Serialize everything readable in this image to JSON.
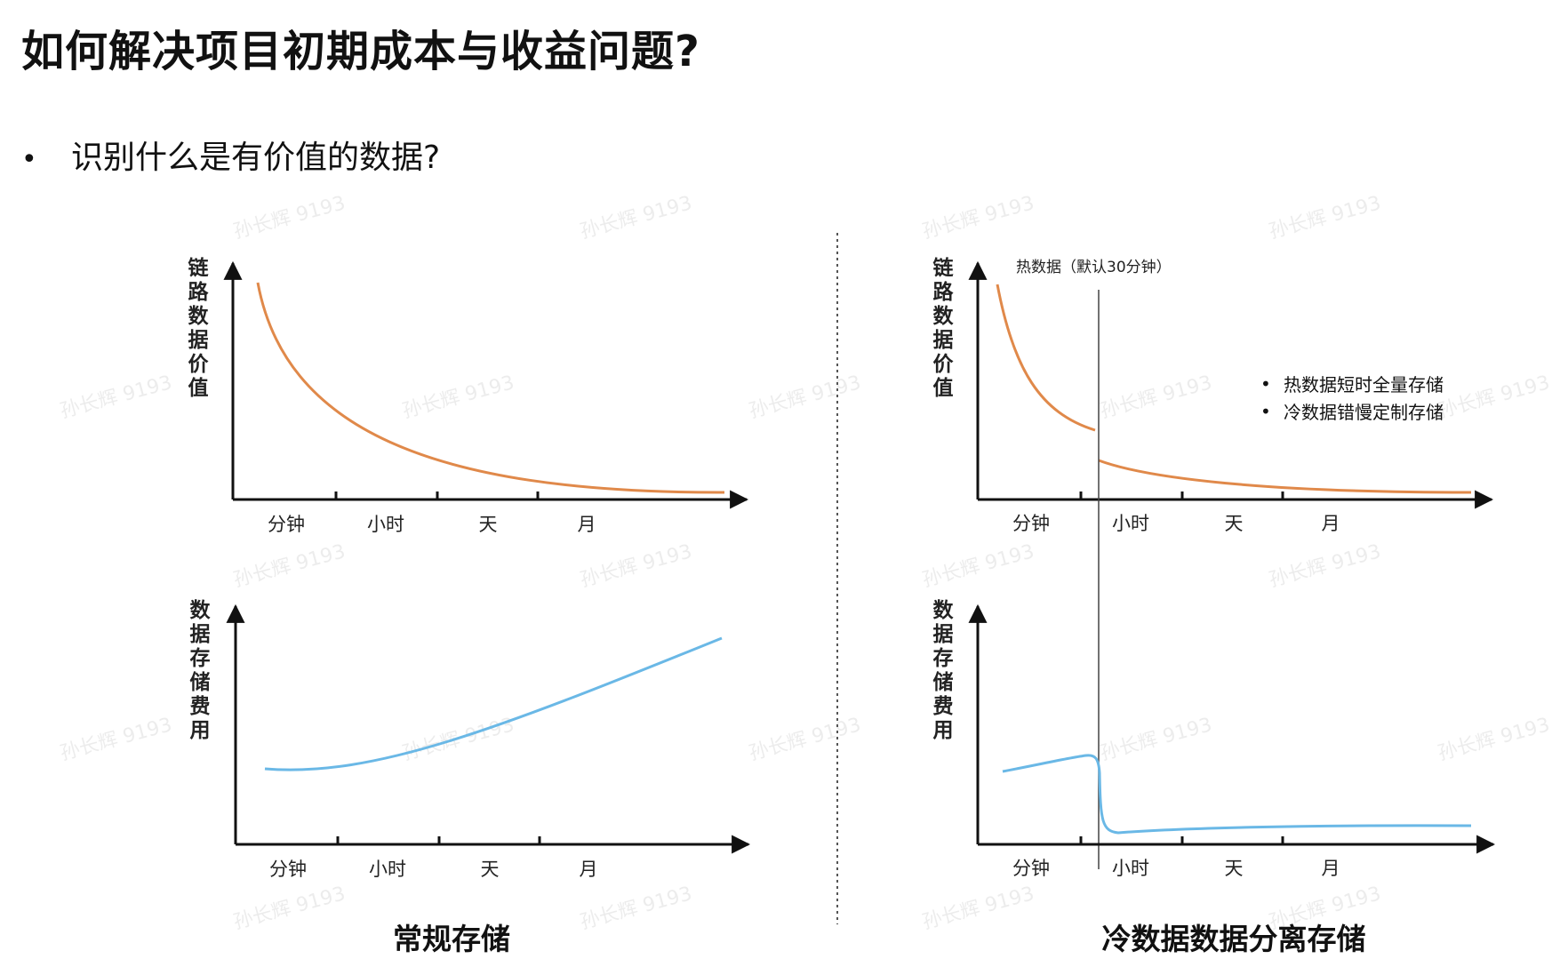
{
  "title": "如何解决项目初期成本与收益问题?",
  "bullet": {
    "dot": "•",
    "text": "识别什么是有价值的数据?"
  },
  "colors": {
    "value_curve": "#e0894a",
    "cost_curve": "#6ab8e6",
    "axis": "#111111"
  },
  "watermark": "孙长辉 9193",
  "x_ticks": [
    "分钟",
    "小时",
    "天",
    "月"
  ],
  "left_panel": {
    "caption": "常规存储",
    "top_chart": {
      "ylabel": "链路数据价值"
    },
    "bottom_chart": {
      "ylabel": "数据存储费用"
    }
  },
  "right_panel": {
    "caption": "冷数据数据分离存储",
    "hot_label": "热数据（默认30分钟）",
    "notes": [
      "热数据短时全量存储",
      "冷数据错慢定制存储"
    ],
    "top_chart": {
      "ylabel": "链路数据价值"
    },
    "bottom_chart": {
      "ylabel": "数据存储费用"
    }
  }
}
